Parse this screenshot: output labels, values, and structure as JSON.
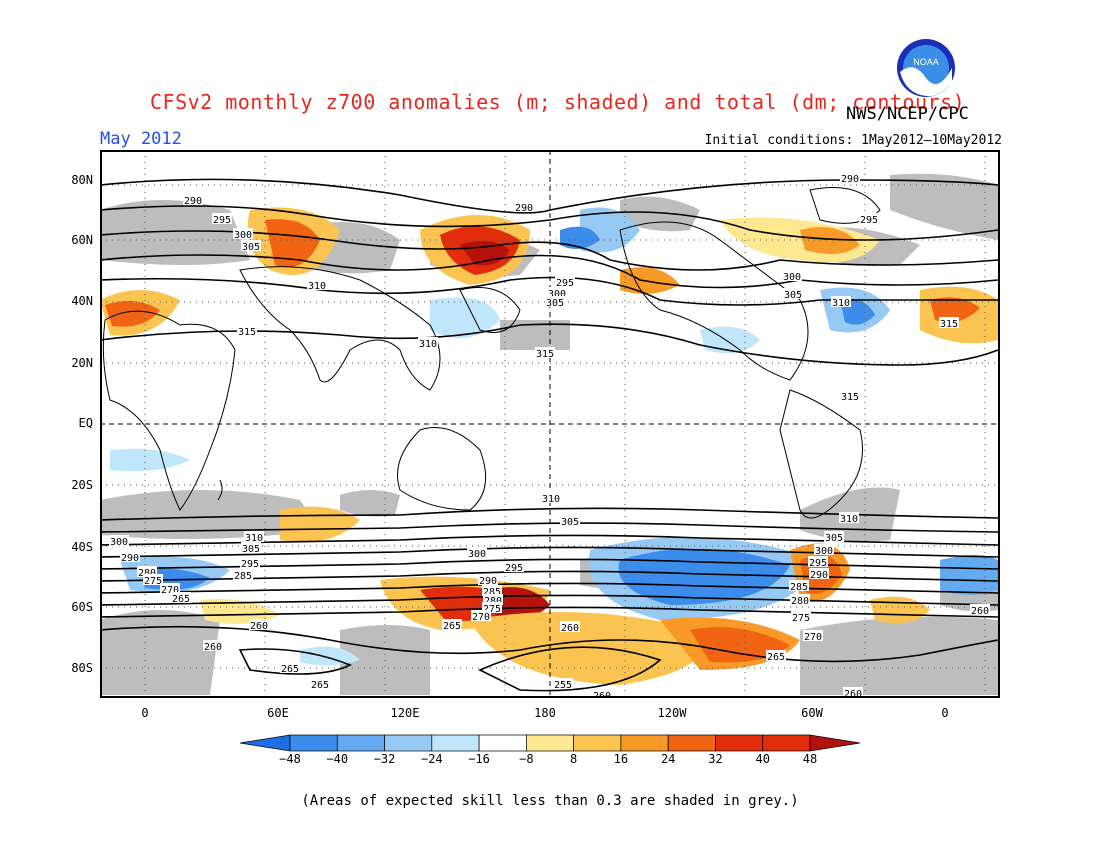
{
  "header": {
    "title": "CFSv2 monthly z700 anomalies (m; shaded) and total (dm; contours)",
    "agency": "NWS/NCEP/CPC",
    "month": "May 2012",
    "initial_conditions": "Initial conditions: 1May2012—10May2012",
    "logo_text": "NOAA"
  },
  "map": {
    "lat_labels": [
      "80N",
      "60N",
      "40N",
      "20N",
      "EQ",
      "20S",
      "40S",
      "60S",
      "80S"
    ],
    "lon_labels": [
      "0",
      "60E",
      "120E",
      "180",
      "120W",
      "60W",
      "0"
    ],
    "north_contours": [
      {
        "label": "290",
        "x": "193",
        "y": "200"
      },
      {
        "label": "295",
        "x": "222",
        "y": "219"
      },
      {
        "label": "300",
        "x": "243",
        "y": "234"
      },
      {
        "label": "305",
        "x": "251",
        "y": "246"
      },
      {
        "label": "310",
        "x": "317",
        "y": "285"
      },
      {
        "label": "315",
        "x": "247",
        "y": "331"
      },
      {
        "label": "310",
        "x": "428",
        "y": "343"
      },
      {
        "label": "290",
        "x": "524",
        "y": "207"
      },
      {
        "label": "295",
        "x": "565",
        "y": "282"
      },
      {
        "label": "300",
        "x": "557",
        "y": "293"
      },
      {
        "label": "305",
        "x": "555",
        "y": "302"
      },
      {
        "label": "315",
        "x": "545",
        "y": "353"
      },
      {
        "label": "290",
        "x": "850",
        "y": "178"
      },
      {
        "label": "295",
        "x": "869",
        "y": "219"
      },
      {
        "label": "300",
        "x": "792",
        "y": "276"
      },
      {
        "label": "305",
        "x": "793",
        "y": "294"
      },
      {
        "label": "310",
        "x": "841",
        "y": "302"
      },
      {
        "label": "315",
        "x": "949",
        "y": "323"
      },
      {
        "label": "315",
        "x": "850",
        "y": "396"
      }
    ],
    "south_contours": [
      {
        "label": "310",
        "x": "551",
        "y": "498"
      },
      {
        "label": "305",
        "x": "570",
        "y": "521"
      },
      {
        "label": "310",
        "x": "849",
        "y": "518"
      },
      {
        "label": "305",
        "x": "834",
        "y": "537"
      },
      {
        "label": "300",
        "x": "824",
        "y": "550"
      },
      {
        "label": "295",
        "x": "818",
        "y": "562"
      },
      {
        "label": "290",
        "x": "819",
        "y": "574"
      },
      {
        "label": "310",
        "x": "254",
        "y": "537"
      },
      {
        "label": "305",
        "x": "251",
        "y": "548"
      },
      {
        "label": "300",
        "x": "119",
        "y": "541"
      },
      {
        "label": "295",
        "x": "250",
        "y": "563"
      },
      {
        "label": "290",
        "x": "130",
        "y": "557"
      },
      {
        "label": "285",
        "x": "243",
        "y": "575"
      },
      {
        "label": "280",
        "x": "147",
        "y": "572"
      },
      {
        "label": "275",
        "x": "153",
        "y": "580"
      },
      {
        "label": "270",
        "x": "170",
        "y": "589"
      },
      {
        "label": "265",
        "x": "181",
        "y": "598"
      },
      {
        "label": "300",
        "x": "477",
        "y": "553"
      },
      {
        "label": "295",
        "x": "514",
        "y": "567"
      },
      {
        "label": "290",
        "x": "488",
        "y": "580"
      },
      {
        "label": "285",
        "x": "492",
        "y": "591"
      },
      {
        "label": "280",
        "x": "493",
        "y": "600"
      },
      {
        "label": "275",
        "x": "492",
        "y": "608"
      },
      {
        "label": "270",
        "x": "481",
        "y": "616"
      },
      {
        "label": "265",
        "x": "452",
        "y": "625"
      },
      {
        "label": "260",
        "x": "570",
        "y": "627"
      },
      {
        "label": "285",
        "x": "799",
        "y": "586"
      },
      {
        "label": "280",
        "x": "800",
        "y": "600"
      },
      {
        "label": "275",
        "x": "801",
        "y": "617"
      },
      {
        "label": "270",
        "x": "813",
        "y": "636"
      },
      {
        "label": "265",
        "x": "776",
        "y": "656"
      },
      {
        "label": "260",
        "x": "259",
        "y": "625"
      },
      {
        "label": "260",
        "x": "213",
        "y": "646"
      },
      {
        "label": "265",
        "x": "290",
        "y": "668"
      },
      {
        "label": "265",
        "x": "320",
        "y": "684"
      },
      {
        "label": "255",
        "x": "563",
        "y": "684"
      },
      {
        "label": "260",
        "x": "602",
        "y": "695"
      },
      {
        "label": "260",
        "x": "980",
        "y": "610"
      },
      {
        "label": "260",
        "x": "853",
        "y": "693"
      }
    ]
  },
  "colorbar": {
    "ticks": [
      "−48",
      "−40",
      "−32",
      "−24",
      "−16",
      "−8",
      "8",
      "16",
      "24",
      "32",
      "40",
      "48"
    ],
    "colors": [
      "#1e6ee6",
      "#3c8ceb",
      "#64aaf0",
      "#96caf5",
      "#bfe6fa",
      "#ffffff",
      "#fde890",
      "#fbc450",
      "#f89a28",
      "#f06414",
      "#e22c0c",
      "#b4120a"
    ],
    "note": "(Areas of expected skill less than 0.3 are shaded in grey.)"
  }
}
